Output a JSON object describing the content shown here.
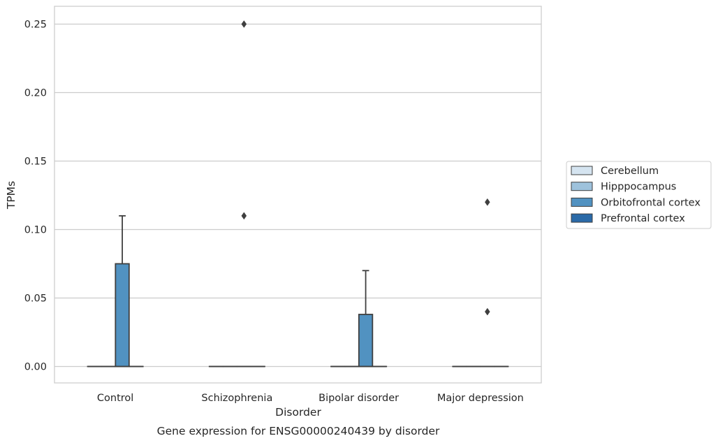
{
  "chart_data": {
    "type": "box",
    "xlabel": "Disorder",
    "ylabel": "TPMs",
    "caption": "Gene expression for ENSG00000240439 by disorder",
    "categories": [
      "Control",
      "Schizophrenia",
      "Bipolar disorder",
      "Major depression"
    ],
    "ylim": [
      -0.012,
      0.263
    ],
    "yticks": [
      0.0,
      0.05,
      0.1,
      0.15,
      0.2,
      0.25
    ],
    "ytick_labels": [
      "0.00",
      "0.05",
      "0.10",
      "0.15",
      "0.20",
      "0.25"
    ],
    "grid": "horizontal",
    "legend_position": "right",
    "series": [
      {
        "name": "Cerebellum",
        "color": "#d5e4f0",
        "boxes": [
          {
            "category": "Control",
            "q1": 0,
            "median": 0,
            "q3": 0,
            "whisker_low": 0,
            "whisker_high": 0,
            "outliers": []
          },
          {
            "category": "Schizophrenia",
            "q1": 0,
            "median": 0,
            "q3": 0,
            "whisker_low": 0,
            "whisker_high": 0,
            "outliers": []
          },
          {
            "category": "Bipolar disorder",
            "q1": 0,
            "median": 0,
            "q3": 0,
            "whisker_low": 0,
            "whisker_high": 0,
            "outliers": []
          },
          {
            "category": "Major depression",
            "q1": 0,
            "median": 0,
            "q3": 0,
            "whisker_low": 0,
            "whisker_high": 0,
            "outliers": []
          }
        ]
      },
      {
        "name": "Hipppocampus",
        "color": "#9ec2dc",
        "boxes": [
          {
            "category": "Control",
            "q1": 0,
            "median": 0,
            "q3": 0,
            "whisker_low": 0,
            "whisker_high": 0,
            "outliers": []
          },
          {
            "category": "Schizophrenia",
            "q1": 0,
            "median": 0,
            "q3": 0,
            "whisker_low": 0,
            "whisker_high": 0,
            "outliers": []
          },
          {
            "category": "Bipolar disorder",
            "q1": 0,
            "median": 0,
            "q3": 0,
            "whisker_low": 0,
            "whisker_high": 0,
            "outliers": []
          },
          {
            "category": "Major depression",
            "q1": 0,
            "median": 0,
            "q3": 0,
            "whisker_low": 0,
            "whisker_high": 0,
            "outliers": []
          }
        ]
      },
      {
        "name": "Orbitofrontal cortex",
        "color": "#5192c1",
        "boxes": [
          {
            "category": "Control",
            "q1": 0,
            "median": 0,
            "q3": 0.075,
            "whisker_low": 0,
            "whisker_high": 0.11,
            "outliers": []
          },
          {
            "category": "Schizophrenia",
            "q1": 0,
            "median": 0,
            "q3": 0,
            "whisker_low": 0,
            "whisker_high": 0,
            "outliers": [
              0.11,
              0.25
            ]
          },
          {
            "category": "Bipolar disorder",
            "q1": 0,
            "median": 0,
            "q3": 0.038,
            "whisker_low": 0,
            "whisker_high": 0.07,
            "outliers": []
          },
          {
            "category": "Major depression",
            "q1": 0,
            "median": 0,
            "q3": 0,
            "whisker_low": 0,
            "whisker_high": 0,
            "outliers": [
              0.04,
              0.12
            ]
          }
        ]
      },
      {
        "name": "Prefrontal cortex",
        "color": "#2a6aa8",
        "boxes": [
          {
            "category": "Control",
            "q1": 0,
            "median": 0,
            "q3": 0,
            "whisker_low": 0,
            "whisker_high": 0,
            "outliers": []
          },
          {
            "category": "Schizophrenia",
            "q1": 0,
            "median": 0,
            "q3": 0,
            "whisker_low": 0,
            "whisker_high": 0,
            "outliers": []
          },
          {
            "category": "Bipolar disorder",
            "q1": 0,
            "median": 0,
            "q3": 0,
            "whisker_low": 0,
            "whisker_high": 0,
            "outliers": []
          },
          {
            "category": "Major depression",
            "q1": 0,
            "median": 0,
            "q3": 0,
            "whisker_low": 0,
            "whisker_high": 0,
            "outliers": []
          }
        ]
      }
    ]
  }
}
